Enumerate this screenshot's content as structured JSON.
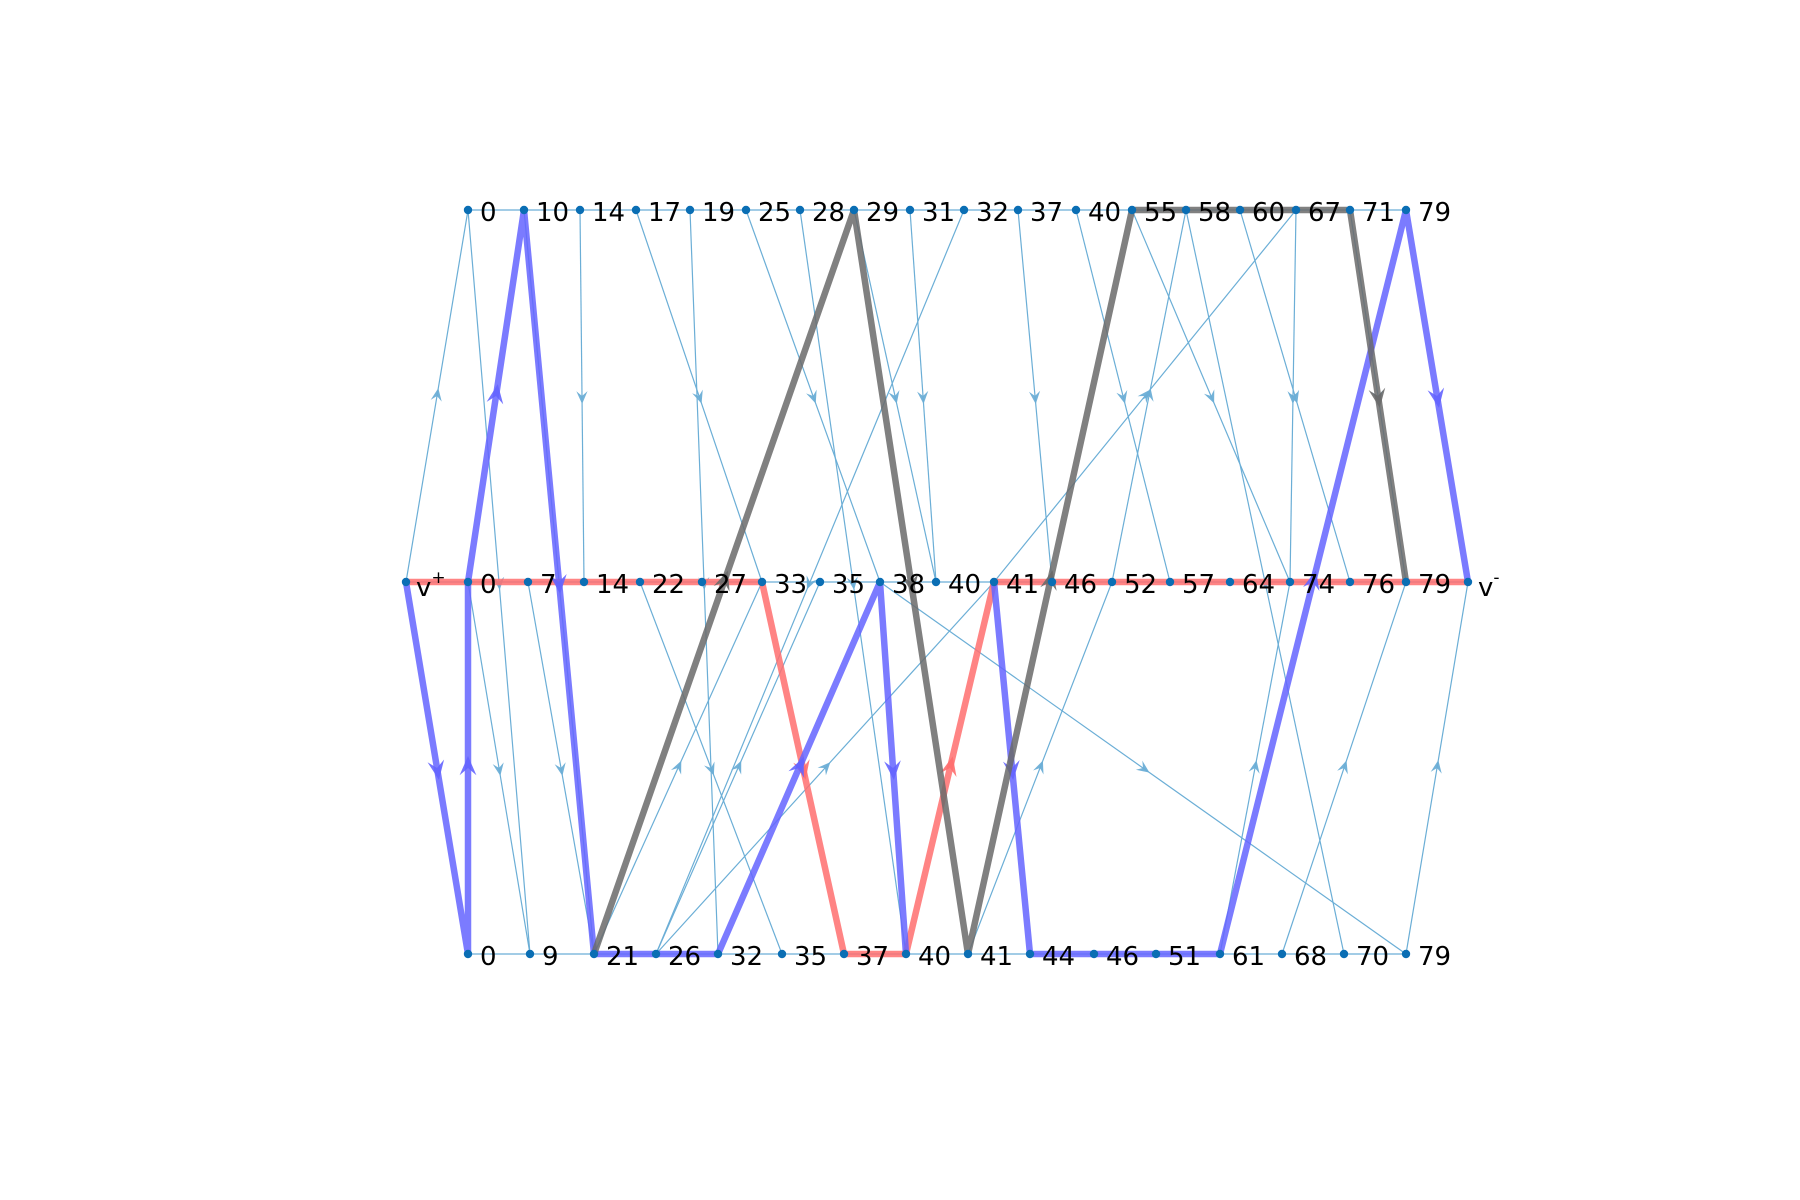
{
  "colors": {
    "background": "#ffffff",
    "node": "#0a6eb4",
    "thin_edge": "#6baed6",
    "path_red": "#ff6e6e",
    "path_blue": "#6464ff",
    "path_gray": "#6a6a6a",
    "label": "#000000"
  },
  "rows": [
    {
      "id": "top",
      "labels": [
        "0",
        "10",
        "14",
        "17",
        "19",
        "25",
        "28",
        "29",
        "31",
        "32",
        "37",
        "40",
        "55",
        "58",
        "60",
        "67",
        "71",
        "79"
      ]
    },
    {
      "id": "mid",
      "labels": [
        "0",
        "7",
        "14",
        "22",
        "27",
        "33",
        "35",
        "38",
        "40",
        "41",
        "46",
        "52",
        "57",
        "64",
        "74",
        "76",
        "79"
      ]
    },
    {
      "id": "bot",
      "labels": [
        "0",
        "9",
        "21",
        "26",
        "32",
        "35",
        "37",
        "40",
        "41",
        "44",
        "46",
        "51",
        "61",
        "68",
        "70",
        "79"
      ]
    }
  ],
  "source": {
    "base": "v",
    "sup": "+"
  },
  "sink": {
    "base": "v",
    "sup": "-"
  },
  "thin_edges": [
    [
      "src",
      "top:0"
    ],
    [
      "top:0",
      "bot:9"
    ],
    [
      "top:10",
      "bot:21"
    ],
    [
      "top:14",
      "mid:14"
    ],
    [
      "top:17",
      "mid:33"
    ],
    [
      "top:19",
      "bot:32"
    ],
    [
      "top:25",
      "mid:38"
    ],
    [
      "top:28",
      "bot:40"
    ],
    [
      "top:29",
      "mid:40"
    ],
    [
      "top:31",
      "mid:40"
    ],
    [
      "top:32",
      "bot:26"
    ],
    [
      "top:37",
      "mid:46"
    ],
    [
      "top:40",
      "mid:57"
    ],
    [
      "top:55",
      "mid:74"
    ],
    [
      "top:58",
      "bot:70"
    ],
    [
      "top:60",
      "mid:76"
    ],
    [
      "top:67",
      "mid:74"
    ],
    [
      "top:71",
      "mid:79"
    ],
    [
      "mid:0",
      "bot:9"
    ],
    [
      "mid:22",
      "bot:35"
    ],
    [
      "bot:21",
      "mid:33"
    ],
    [
      "bot:26",
      "mid:35"
    ],
    [
      "bot:26",
      "mid:41"
    ],
    [
      "bot:41",
      "mid:52"
    ],
    [
      "mid:7",
      "bot:21"
    ],
    [
      "mid:52",
      "top:58"
    ],
    [
      "mid:41",
      "top:67"
    ],
    [
      "bot:61",
      "mid:74"
    ],
    [
      "bot:68",
      "mid:79"
    ],
    [
      "mid:38",
      "bot:79"
    ],
    [
      "bot:79",
      "sink"
    ]
  ],
  "thick_paths": [
    {
      "color": "path_red",
      "nodes": [
        "src",
        "mid:0",
        "mid:7",
        "mid:14",
        "mid:22",
        "mid:27",
        "mid:33",
        "bot:37",
        "bot:40",
        "mid:41",
        "mid:46",
        "mid:52",
        "mid:57",
        "mid:64",
        "mid:74",
        "mid:76",
        "mid:79",
        "sink"
      ]
    },
    {
      "color": "path_blue",
      "nodes": [
        "src",
        "bot:0",
        "mid:0",
        "top:10",
        "bot:21",
        "bot:26",
        "bot:32",
        "mid:38",
        "bot:40"
      ]
    },
    {
      "color": "path_blue",
      "nodes": [
        "mid:41",
        "bot:44",
        "bot:46",
        "bot:51",
        "bot:61",
        "top:79",
        "sink"
      ]
    },
    {
      "color": "path_gray",
      "nodes": [
        "bot:21",
        "top:29",
        "bot:41",
        "top:55",
        "top:58",
        "top:60",
        "top:67",
        "top:71",
        "mid:79"
      ]
    }
  ]
}
